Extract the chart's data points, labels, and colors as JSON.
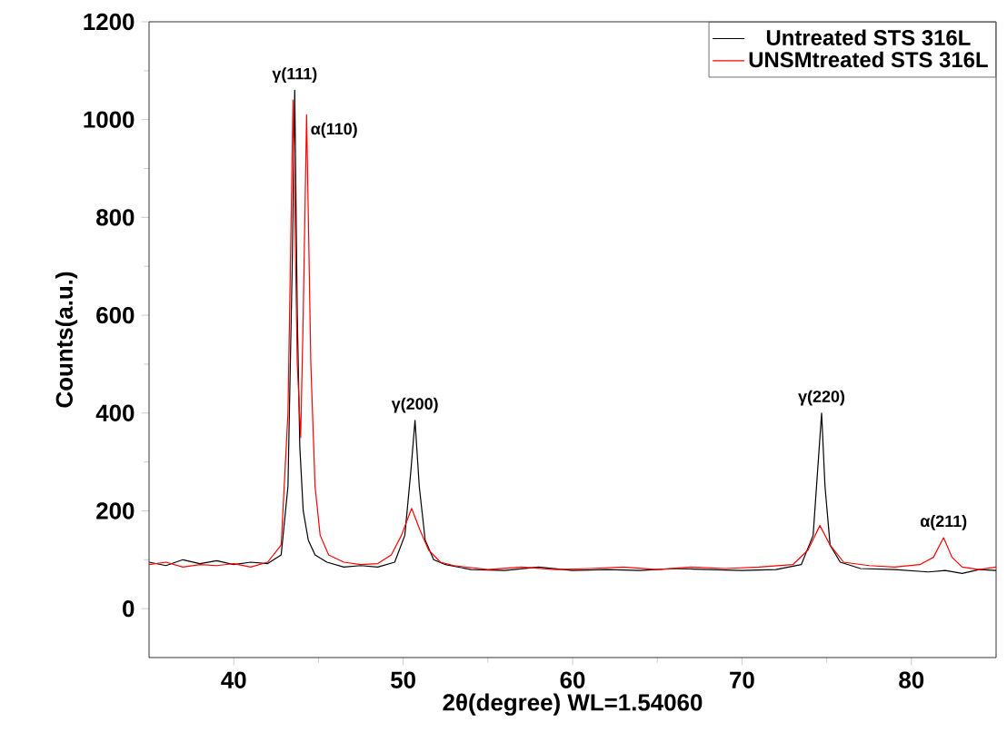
{
  "chart_data": {
    "type": "line",
    "xlabel": "2θ(degree) WL=1.54060",
    "ylabel": "Counts(a.u.)",
    "xlim": [
      35,
      85
    ],
    "ylim": [
      -100,
      1200
    ],
    "xticks": [
      40,
      50,
      60,
      70,
      80
    ],
    "yticks": [
      0,
      200,
      400,
      600,
      800,
      1000,
      1200
    ],
    "legend": "top right",
    "series": [
      {
        "name": "Untreated STS 316L",
        "color": "#000000",
        "x": [
          35,
          36,
          37,
          38,
          39,
          40,
          41,
          42,
          42.8,
          43.2,
          43.45,
          43.6,
          43.75,
          43.9,
          44.1,
          44.4,
          44.8,
          45.5,
          46.5,
          47.5,
          48.5,
          49.5,
          50.1,
          50.45,
          50.7,
          50.95,
          51.3,
          51.8,
          52.5,
          54,
          56,
          58,
          60,
          62,
          64,
          66,
          68,
          70,
          72,
          73.5,
          74.2,
          74.5,
          74.7,
          74.9,
          75.2,
          75.8,
          77,
          79,
          81,
          82,
          83,
          84,
          85
        ],
        "values": [
          95,
          88,
          100,
          92,
          98,
          90,
          95,
          92,
          110,
          250,
          700,
          1060,
          600,
          330,
          200,
          140,
          110,
          95,
          85,
          88,
          85,
          95,
          150,
          280,
          385,
          250,
          140,
          100,
          90,
          80,
          78,
          85,
          78,
          80,
          78,
          82,
          80,
          78,
          80,
          90,
          150,
          300,
          400,
          250,
          130,
          95,
          82,
          80,
          75,
          78,
          72,
          80,
          78
        ]
      },
      {
        "name": "UNSMtreated STS 316L",
        "color": "#ff0000",
        "x": [
          35,
          36,
          37,
          38,
          39,
          40,
          41,
          42,
          42.8,
          43.2,
          43.5,
          43.75,
          43.95,
          44.1,
          44.3,
          44.55,
          44.8,
          45.1,
          45.6,
          46.5,
          47.5,
          48.5,
          49.3,
          49.9,
          50.5,
          51,
          51.5,
          52.2,
          53,
          55,
          57,
          59,
          61,
          63,
          65,
          67,
          69,
          71,
          73,
          73.9,
          74.6,
          75.2,
          76,
          77.5,
          79,
          80.5,
          81.3,
          81.9,
          82.4,
          83,
          84,
          85
        ],
        "values": [
          90,
          95,
          85,
          90,
          88,
          92,
          85,
          95,
          130,
          400,
          1040,
          500,
          350,
          600,
          1010,
          500,
          250,
          150,
          110,
          95,
          90,
          92,
          110,
          150,
          205,
          160,
          120,
          95,
          88,
          80,
          85,
          80,
          82,
          85,
          80,
          85,
          82,
          85,
          90,
          120,
          170,
          130,
          95,
          88,
          85,
          90,
          105,
          145,
          105,
          85,
          80,
          85
        ]
      }
    ],
    "annotations": [
      {
        "text": "γ(111)",
        "x": 43.6,
        "y": 1060
      },
      {
        "text": "α(110)",
        "x": 44.3,
        "y": 1010
      },
      {
        "text": "γ(200)",
        "x": 50.7,
        "y": 385
      },
      {
        "text": "γ(220)",
        "x": 74.7,
        "y": 400
      },
      {
        "text": "α(211)",
        "x": 81.9,
        "y": 145
      }
    ]
  }
}
